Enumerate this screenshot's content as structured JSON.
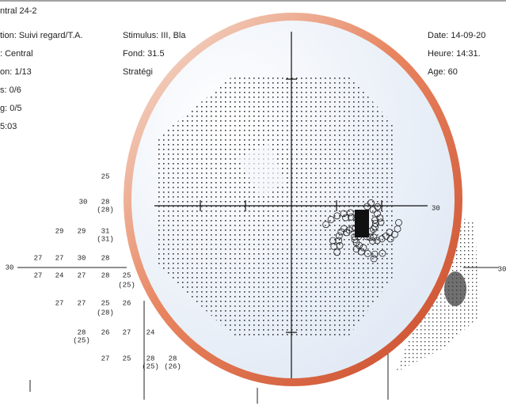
{
  "header": {
    "title": "ntral 24-2",
    "left": [
      "tion: Suivi regard/T.A.",
      ": Central",
      "on: 1/13",
      "s: 0/6",
      "g: 0/5",
      "5:03"
    ],
    "middle": [
      "Stimulus: III, Bla",
      "Fond: 31.5",
      "Stratégi"
    ],
    "right": [
      "Date: 14-09-20",
      "Heure: 14:31.",
      "Age: 60"
    ]
  },
  "axis_labels": {
    "magnified_right": "30",
    "left": "30",
    "right": "30"
  },
  "grid_values": [
    "25",
    "30",
    "28",
    "29",
    "29",
    "31",
    "27",
    "27",
    "30",
    "28",
    "27",
    "24",
    "27",
    "28",
    "25",
    "27",
    "27",
    "25",
    "26",
    "28",
    "26",
    "27",
    "24",
    "27",
    "25",
    "28",
    "28"
  ],
  "grid_paren": [
    "(28)",
    "(31)",
    "(25)",
    "(28)",
    "(25)",
    "(25)",
    "(26)"
  ]
}
